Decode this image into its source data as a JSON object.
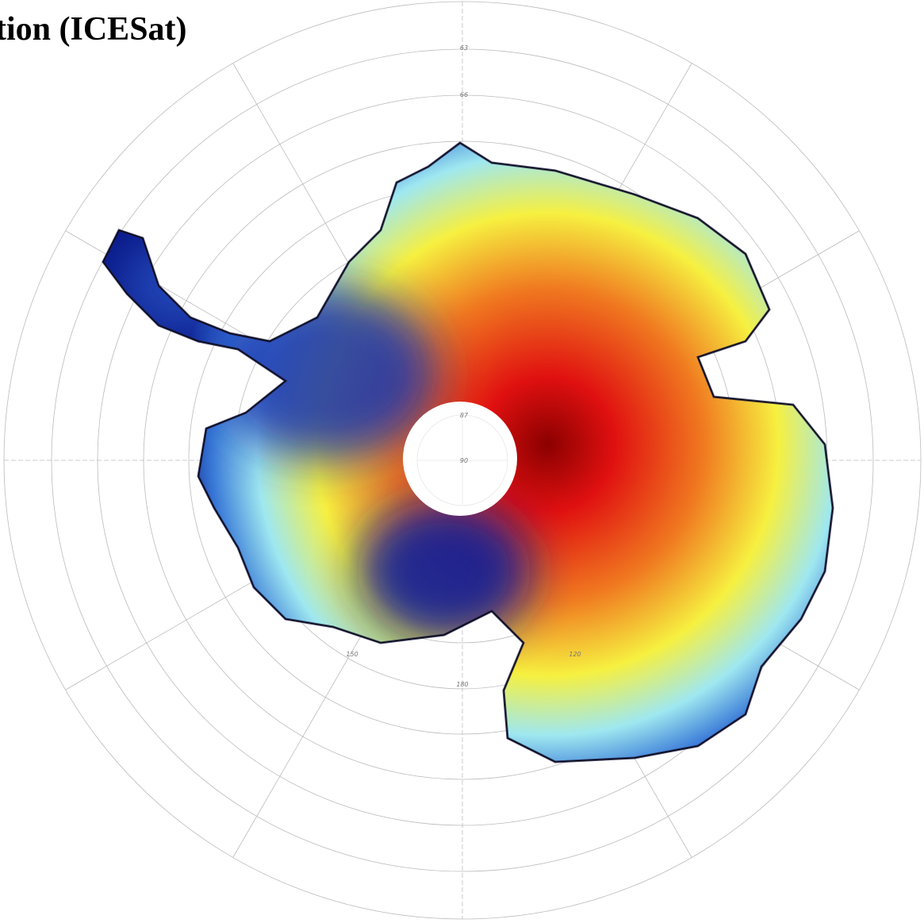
{
  "title": "tion (ICESat)",
  "graticule": {
    "latitude_labels": [
      "63",
      "66",
      "87",
      "90"
    ],
    "longitude_labels": [
      "150",
      "180",
      "120"
    ]
  }
}
